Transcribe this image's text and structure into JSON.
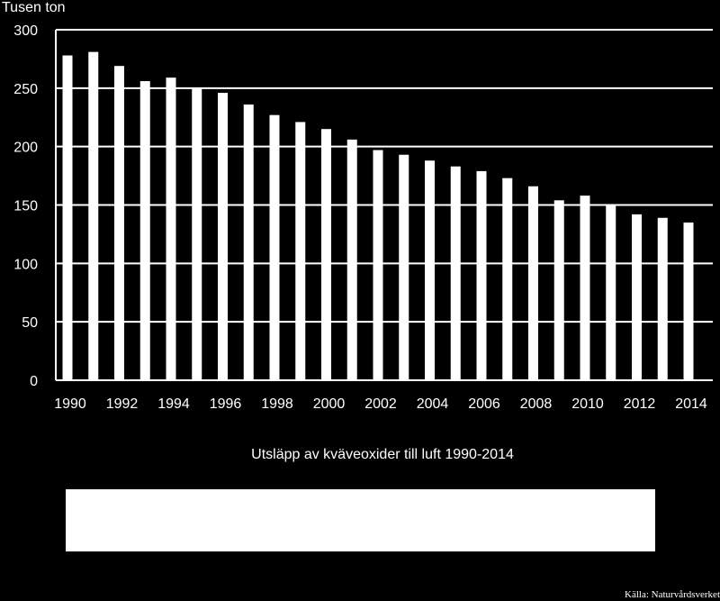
{
  "chart_data": {
    "type": "bar",
    "title": "Utsläpp av kväveoxider till luft 1990-2014",
    "ylabel": "Tusen ton",
    "xlabel": "",
    "ylim": [
      0,
      300
    ],
    "yticks": [
      0,
      50,
      100,
      150,
      200,
      250,
      300
    ],
    "grid": true,
    "categories": [
      "1990",
      "1991",
      "1992",
      "1993",
      "1994",
      "1995",
      "1996",
      "1997",
      "1998",
      "1999",
      "2000",
      "2001",
      "2002",
      "2003",
      "2004",
      "2005",
      "2006",
      "2007",
      "2008",
      "2009",
      "2010",
      "2011",
      "2012",
      "2013",
      "2014"
    ],
    "xtick_labels": [
      "1990",
      "1992",
      "1994",
      "1996",
      "1998",
      "2000",
      "2002",
      "2004",
      "2006",
      "2008",
      "2010",
      "2012",
      "2014"
    ],
    "values": [
      278,
      281,
      269,
      256,
      259,
      250,
      246,
      236,
      227,
      221,
      215,
      206,
      197,
      193,
      188,
      183,
      179,
      173,
      166,
      154,
      158,
      150,
      142,
      139,
      135
    ],
    "bar_color": "#ffffff",
    "grid_color": "#ffffff",
    "background": "#000000"
  },
  "source": "Källa: Naturvårdsverket"
}
